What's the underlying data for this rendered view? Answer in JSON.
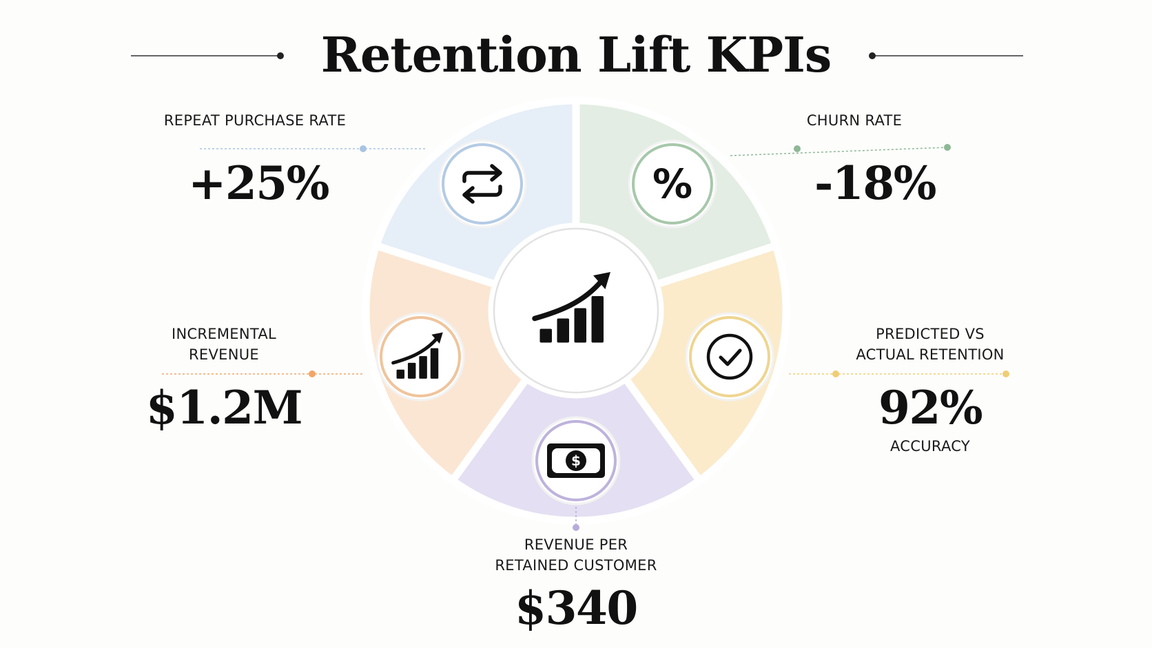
{
  "title": "Retention Lift KPIs",
  "kpis": [
    {
      "id": "repeat-purchase-rate",
      "label_lines": [
        "REPEAT PURCHASE RATE"
      ],
      "value": "+25%",
      "icon": "repeat-arrows-icon",
      "fill": "#e6eef8",
      "ring": "#b4cbe4",
      "dot": "#a9c4e3"
    },
    {
      "id": "churn-rate",
      "label_lines": [
        "CHURN RATE"
      ],
      "value": "-18%",
      "icon": "percent-icon",
      "fill": "#e3ede3",
      "ring": "#a7c8ab",
      "dot": "#8db895"
    },
    {
      "id": "predicted-vs-actual",
      "label_lines": [
        "PREDICTED VS",
        "ACTUAL RETENTION"
      ],
      "value": "92%",
      "sub": "ACCURACY",
      "icon": "checkmark-circle-icon",
      "fill": "#fbebcb",
      "ring": "#efd591",
      "dot": "#f0cd75"
    },
    {
      "id": "revenue-per-retained-customer",
      "label_lines": [
        "REVENUE PER",
        "RETAINED CUSTOMER"
      ],
      "value": "$340",
      "icon": "money-bill-icon",
      "fill": "#e4dff2",
      "ring": "#beb3dc",
      "dot": "#b7abdb"
    },
    {
      "id": "incremental-revenue",
      "label_lines": [
        "INCREMENTAL",
        "REVENUE"
      ],
      "value": "$1.2M",
      "icon": "growth-chart-icon",
      "fill": "#fbe6d3",
      "ring": "#f0c49c",
      "dot": "#f2a667"
    }
  ],
  "center_icon": "growth-chart-icon"
}
